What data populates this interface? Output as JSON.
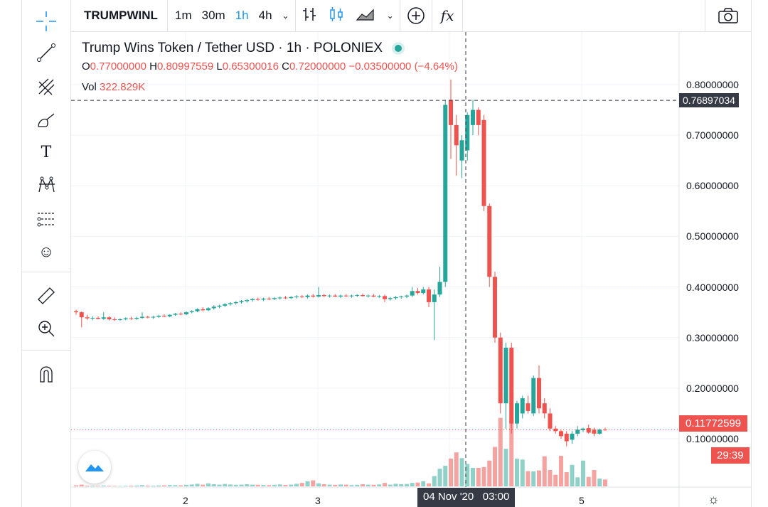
{
  "toolbar": {
    "symbol": "TRUMPWINL",
    "intervals": [
      "1m",
      "30m",
      "1h",
      "4h"
    ],
    "active_interval": "1h",
    "icons": [
      "bar-chart-icon",
      "candles-icon",
      "area-chart-icon",
      "add-compare-icon",
      "indicators-icon",
      "camera-icon"
    ],
    "fx": "fx"
  },
  "legend": {
    "title": "Trump Wins Token / Tether USD · 1h · POLONIEX",
    "o_label": "O",
    "o": "0.77000000",
    "h_label": "H",
    "h": "0.80997559",
    "l_label": "L",
    "l": "0.65300016",
    "c_label": "C",
    "c": "0.72000000",
    "change": "−0.03500000 (−4.64%)",
    "vol_label": "Vol",
    "vol": "322.829K"
  },
  "price_axis": {
    "labels": [
      "0.80000000",
      "0.70000000",
      "0.60000000",
      "0.50000000",
      "0.40000000",
      "0.30000000",
      "0.20000000",
      "0.10000000"
    ],
    "crosshair_price": "0.76897034",
    "last_price": "0.11772599",
    "countdown": "29:39"
  },
  "time_axis": {
    "labels": [
      "2",
      "3",
      "5"
    ],
    "crosshair_time": "04 Nov '20   03:00"
  },
  "colors": {
    "up": "#26a69a",
    "down": "#ef5350",
    "vol_up": "#8fd1c8",
    "vol_down": "#f4a3a1",
    "accent": "#2196f3"
  },
  "chart_data": {
    "type": "candlestick",
    "price_range": [
      0.1,
      0.8
    ],
    "candles": [
      [
        0.352,
        0.355,
        0.345,
        0.35,
        12
      ],
      [
        0.35,
        0.352,
        0.32,
        0.34,
        20
      ],
      [
        0.34,
        0.345,
        0.335,
        0.338,
        8
      ],
      [
        0.338,
        0.342,
        0.334,
        0.339,
        6
      ],
      [
        0.339,
        0.342,
        0.336,
        0.337,
        5
      ],
      [
        0.337,
        0.35,
        0.335,
        0.34,
        10
      ],
      [
        0.34,
        0.342,
        0.334,
        0.336,
        6
      ],
      [
        0.336,
        0.34,
        0.333,
        0.335,
        5
      ],
      [
        0.335,
        0.338,
        0.333,
        0.336,
        4
      ],
      [
        0.336,
        0.34,
        0.334,
        0.338,
        6
      ],
      [
        0.338,
        0.341,
        0.335,
        0.337,
        8
      ],
      [
        0.337,
        0.341,
        0.335,
        0.339,
        10
      ],
      [
        0.339,
        0.35,
        0.337,
        0.341,
        14
      ],
      [
        0.341,
        0.343,
        0.338,
        0.34,
        9
      ],
      [
        0.34,
        0.343,
        0.337,
        0.341,
        7
      ],
      [
        0.341,
        0.345,
        0.339,
        0.343,
        10
      ],
      [
        0.343,
        0.346,
        0.34,
        0.342,
        12
      ],
      [
        0.342,
        0.346,
        0.34,
        0.345,
        15
      ],
      [
        0.345,
        0.349,
        0.343,
        0.347,
        14
      ],
      [
        0.347,
        0.35,
        0.344,
        0.346,
        12
      ],
      [
        0.346,
        0.352,
        0.344,
        0.35,
        18
      ],
      [
        0.35,
        0.354,
        0.348,
        0.352,
        22
      ],
      [
        0.352,
        0.358,
        0.35,
        0.356,
        30
      ],
      [
        0.356,
        0.36,
        0.352,
        0.354,
        20
      ],
      [
        0.354,
        0.36,
        0.352,
        0.358,
        35
      ],
      [
        0.358,
        0.364,
        0.355,
        0.361,
        25
      ],
      [
        0.361,
        0.365,
        0.358,
        0.363,
        20
      ],
      [
        0.363,
        0.368,
        0.36,
        0.366,
        28
      ],
      [
        0.366,
        0.37,
        0.363,
        0.368,
        22
      ],
      [
        0.368,
        0.372,
        0.365,
        0.37,
        18
      ],
      [
        0.37,
        0.374,
        0.367,
        0.372,
        20
      ],
      [
        0.372,
        0.376,
        0.369,
        0.374,
        25
      ],
      [
        0.374,
        0.378,
        0.371,
        0.376,
        20
      ],
      [
        0.376,
        0.379,
        0.373,
        0.375,
        18
      ],
      [
        0.375,
        0.379,
        0.372,
        0.377,
        16
      ],
      [
        0.377,
        0.38,
        0.374,
        0.376,
        14
      ],
      [
        0.376,
        0.38,
        0.374,
        0.378,
        18
      ],
      [
        0.378,
        0.381,
        0.375,
        0.379,
        22
      ],
      [
        0.379,
        0.382,
        0.376,
        0.378,
        16
      ],
      [
        0.378,
        0.382,
        0.376,
        0.38,
        20
      ],
      [
        0.38,
        0.384,
        0.377,
        0.381,
        30
      ],
      [
        0.381,
        0.384,
        0.378,
        0.38,
        40
      ],
      [
        0.38,
        0.385,
        0.377,
        0.383,
        60
      ],
      [
        0.383,
        0.386,
        0.379,
        0.381,
        70
      ],
      [
        0.381,
        0.4,
        0.379,
        0.384,
        35
      ],
      [
        0.384,
        0.386,
        0.38,
        0.382,
        25
      ],
      [
        0.382,
        0.385,
        0.379,
        0.383,
        20
      ],
      [
        0.383,
        0.386,
        0.38,
        0.381,
        18
      ],
      [
        0.381,
        0.385,
        0.378,
        0.383,
        22
      ],
      [
        0.383,
        0.386,
        0.38,
        0.382,
        20
      ],
      [
        0.382,
        0.385,
        0.379,
        0.383,
        15
      ],
      [
        0.383,
        0.386,
        0.38,
        0.384,
        18
      ],
      [
        0.384,
        0.387,
        0.381,
        0.382,
        25
      ],
      [
        0.382,
        0.385,
        0.379,
        0.383,
        20
      ],
      [
        0.383,
        0.386,
        0.38,
        0.381,
        18
      ],
      [
        0.381,
        0.384,
        0.378,
        0.382,
        22
      ],
      [
        0.382,
        0.385,
        0.37,
        0.376,
        40
      ],
      [
        0.376,
        0.38,
        0.373,
        0.378,
        20
      ],
      [
        0.378,
        0.382,
        0.375,
        0.38,
        30
      ],
      [
        0.38,
        0.383,
        0.377,
        0.381,
        25
      ],
      [
        0.381,
        0.385,
        0.378,
        0.383,
        28
      ],
      [
        0.383,
        0.4,
        0.38,
        0.392,
        40
      ],
      [
        0.392,
        0.398,
        0.385,
        0.388,
        45
      ],
      [
        0.388,
        0.4,
        0.385,
        0.395,
        60
      ],
      [
        0.395,
        0.4,
        0.36,
        0.37,
        35
      ],
      [
        0.37,
        0.395,
        0.295,
        0.385,
        120
      ],
      [
        0.385,
        0.44,
        0.38,
        0.41,
        205
      ],
      [
        0.41,
        0.77,
        0.4,
        0.76,
        240
      ],
      [
        0.77,
        0.81,
        0.653,
        0.72,
        323
      ],
      [
        0.72,
        0.74,
        0.62,
        0.68,
        395
      ],
      [
        0.65,
        0.7,
        0.615,
        0.69,
        328
      ],
      [
        0.67,
        0.745,
        0.65,
        0.74,
        260
      ],
      [
        0.72,
        0.77,
        0.7,
        0.75,
        215
      ],
      [
        0.75,
        0.755,
        0.7,
        0.72,
        215
      ],
      [
        0.73,
        0.74,
        0.55,
        0.56,
        225
      ],
      [
        0.56,
        0.565,
        0.4,
        0.42,
        300
      ],
      [
        0.42,
        0.43,
        0.29,
        0.3,
        458
      ],
      [
        0.3,
        0.31,
        0.15,
        0.17,
        797
      ],
      [
        0.17,
        0.29,
        0.12,
        0.28,
        437
      ],
      [
        0.28,
        0.29,
        0.11,
        0.13,
        795
      ],
      [
        0.13,
        0.175,
        0.12,
        0.17,
        322
      ],
      [
        0.15,
        0.185,
        0.14,
        0.18,
        311
      ],
      [
        0.17,
        0.185,
        0.15,
        0.155,
        177
      ],
      [
        0.15,
        0.225,
        0.145,
        0.22,
        175
      ],
      [
        0.22,
        0.245,
        0.15,
        0.16,
        185
      ],
      [
        0.17,
        0.18,
        0.14,
        0.15,
        350
      ],
      [
        0.15,
        0.16,
        0.115,
        0.12,
        190
      ],
      [
        0.12,
        0.125,
        0.11,
        0.115,
        135
      ],
      [
        0.115,
        0.118,
        0.1,
        0.105,
        355
      ],
      [
        0.11,
        0.115,
        0.085,
        0.095,
        165
      ],
      [
        0.098,
        0.115,
        0.09,
        0.11,
        250
      ],
      [
        0.11,
        0.125,
        0.105,
        0.118,
        105
      ],
      [
        0.117,
        0.122,
        0.113,
        0.12,
        300
      ],
      [
        0.121,
        0.128,
        0.11,
        0.112,
        110
      ],
      [
        0.118,
        0.122,
        0.105,
        0.11,
        190
      ],
      [
        0.11,
        0.12,
        0.108,
        0.118,
        90
      ],
      [
        0.118,
        0.122,
        0.116,
        0.1177,
        80
      ]
    ]
  }
}
